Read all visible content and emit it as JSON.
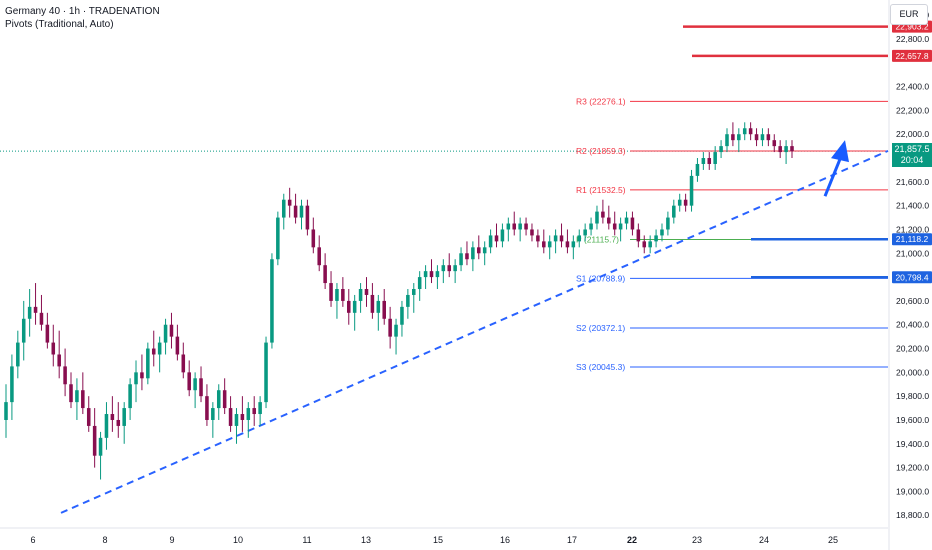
{
  "legend": {
    "title": "Germany 40 · 1h · TRADENATION",
    "indicator": "Pivots (Traditional, Auto)"
  },
  "axis": {
    "currency": "EUR"
  },
  "current_price": {
    "value": "21,857.5",
    "countdown": "20:04",
    "color": "#089981"
  },
  "colors": {
    "resistance_pivot": "#f23645",
    "pivot_point": "#4caf50",
    "support_pivot": "#2962ff",
    "trendline": "#2962ff",
    "up_candle": "#089981",
    "down_candle": "#880e4f",
    "red_level": "#e0303e",
    "blue_level": "#1e63e0",
    "arrow": "#1a5cff"
  },
  "chart_data": {
    "type": "candlestick",
    "symbol": "Germany 40",
    "timeframe": "1h",
    "x_tick_labels": [
      "6",
      "8",
      "9",
      "10",
      "11",
      "13",
      "15",
      "16",
      "17",
      "22",
      "23",
      "24",
      "25"
    ],
    "y_tick_labels": [
      "18,800.0",
      "19,000.0",
      "19,200.0",
      "19,400.0",
      "19,600.0",
      "19,800.0",
      "20,000.0",
      "20,200.0",
      "20,400.0",
      "20,600.0",
      "21,000.0",
      "21,200.0",
      "21,400.0",
      "21,600.0",
      "22,000.0",
      "22,200.0",
      "22,400.0",
      "22,800.0",
      "23,000.0"
    ],
    "y_range": [
      18760,
      23060
    ],
    "pivots": [
      {
        "label": "R3 (22276.1)",
        "value": 22276.1
      },
      {
        "label": "R2 (21859.3)",
        "value": 21859.3
      },
      {
        "label": "R1 (21532.5)",
        "value": 21532.5
      },
      {
        "label": "P (21115.7)",
        "value": 21115.7
      },
      {
        "label": "S1 (20788.9)",
        "value": 20788.9
      },
      {
        "label": "S2 (20372.1)",
        "value": 20372.1
      },
      {
        "label": "S3 (20045.3)",
        "value": 20045.3
      }
    ],
    "key_levels": [
      {
        "label": "22,903.2",
        "value": 22903.2,
        "kind": "resistance"
      },
      {
        "label": "22,657.8",
        "value": 22657.8,
        "kind": "resistance"
      },
      {
        "label": "21,118.2",
        "value": 21118.2,
        "kind": "support"
      },
      {
        "label": "20,798.4",
        "value": 20798.4,
        "kind": "support"
      }
    ],
    "trendline": {
      "from": {
        "x": "6",
        "y": 18820
      },
      "to": {
        "x": "25",
        "y": 21860
      }
    },
    "arrow": {
      "from": {
        "x": "24",
        "y": 21480
      },
      "to": {
        "x": "25",
        "y": 21950
      }
    },
    "candles": [
      [
        19600,
        19900,
        19450,
        19750
      ],
      [
        19750,
        20150,
        19600,
        20050
      ],
      [
        20050,
        20350,
        19950,
        20250
      ],
      [
        20250,
        20600,
        20100,
        20450
      ],
      [
        20450,
        20700,
        20300,
        20550
      ],
      [
        20550,
        20750,
        20400,
        20500
      ],
      [
        20500,
        20650,
        20350,
        20400
      ],
      [
        20400,
        20500,
        20200,
        20250
      ],
      [
        20250,
        20400,
        20050,
        20150
      ],
      [
        20150,
        20350,
        19950,
        20050
      ],
      [
        20050,
        20200,
        19800,
        19900
      ],
      [
        19900,
        20000,
        19700,
        19750
      ],
      [
        19750,
        19950,
        19600,
        19850
      ],
      [
        19850,
        20000,
        19650,
        19700
      ],
      [
        19700,
        19800,
        19500,
        19550
      ],
      [
        19550,
        19700,
        19200,
        19300
      ],
      [
        19300,
        19500,
        19100,
        19450
      ],
      [
        19450,
        19750,
        19350,
        19650
      ],
      [
        19650,
        19800,
        19500,
        19600
      ],
      [
        19600,
        19750,
        19450,
        19550
      ],
      [
        19550,
        19750,
        19400,
        19700
      ],
      [
        19700,
        19950,
        19600,
        19900
      ],
      [
        19900,
        20100,
        19750,
        20000
      ],
      [
        20000,
        20150,
        19850,
        19950
      ],
      [
        19950,
        20250,
        19900,
        20200
      ],
      [
        20200,
        20350,
        20050,
        20150
      ],
      [
        20150,
        20300,
        20000,
        20250
      ],
      [
        20250,
        20450,
        20150,
        20400
      ],
      [
        20400,
        20500,
        20200,
        20300
      ],
      [
        20300,
        20400,
        20100,
        20150
      ],
      [
        20150,
        20250,
        19950,
        20000
      ],
      [
        20000,
        20100,
        19800,
        19850
      ],
      [
        19850,
        20000,
        19700,
        19950
      ],
      [
        19950,
        20050,
        19750,
        19800
      ],
      [
        19800,
        19900,
        19550,
        19600
      ],
      [
        19600,
        19750,
        19450,
        19700
      ],
      [
        19700,
        19900,
        19600,
        19850
      ],
      [
        19850,
        19950,
        19650,
        19700
      ],
      [
        19700,
        19800,
        19500,
        19550
      ],
      [
        19550,
        19700,
        19400,
        19650
      ],
      [
        19650,
        19800,
        19500,
        19600
      ],
      [
        19600,
        19750,
        19450,
        19700
      ],
      [
        19700,
        19800,
        19550,
        19650
      ],
      [
        19650,
        19800,
        19550,
        19750
      ],
      [
        19750,
        20300,
        19700,
        20250
      ],
      [
        20250,
        21000,
        20200,
        20950
      ],
      [
        20950,
        21350,
        20900,
        21300
      ],
      [
        21300,
        21500,
        21200,
        21450
      ],
      [
        21450,
        21550,
        21300,
        21400
      ],
      [
        21400,
        21500,
        21250,
        21300
      ],
      [
        21300,
        21450,
        21200,
        21400
      ],
      [
        21400,
        21450,
        21150,
        21200
      ],
      [
        21200,
        21300,
        21000,
        21050
      ],
      [
        21050,
        21150,
        20850,
        20900
      ],
      [
        20900,
        21000,
        20700,
        20750
      ],
      [
        20750,
        20850,
        20550,
        20600
      ],
      [
        20600,
        20750,
        20450,
        20700
      ],
      [
        20700,
        20800,
        20550,
        20600
      ],
      [
        20600,
        20700,
        20400,
        20500
      ],
      [
        20500,
        20650,
        20350,
        20600
      ],
      [
        20600,
        20750,
        20500,
        20700
      ],
      [
        20700,
        20800,
        20550,
        20650
      ],
      [
        20650,
        20750,
        20450,
        20500
      ],
      [
        20500,
        20650,
        20350,
        20600
      ],
      [
        20600,
        20700,
        20400,
        20450
      ],
      [
        20450,
        20550,
        20200,
        20300
      ],
      [
        20300,
        20450,
        20150,
        20400
      ],
      [
        20400,
        20600,
        20300,
        20550
      ],
      [
        20550,
        20700,
        20450,
        20650
      ],
      [
        20650,
        20750,
        20500,
        20700
      ],
      [
        20700,
        20850,
        20600,
        20800
      ],
      [
        20800,
        20900,
        20700,
        20850
      ],
      [
        20850,
        20950,
        20750,
        20800
      ],
      [
        20800,
        20900,
        20700,
        20850
      ],
      [
        20850,
        20950,
        20750,
        20900
      ],
      [
        20900,
        21000,
        20800,
        20850
      ],
      [
        20850,
        20950,
        20750,
        20900
      ],
      [
        20900,
        21050,
        20850,
        21000
      ],
      [
        21000,
        21100,
        20900,
        20950
      ],
      [
        20950,
        21100,
        20850,
        21050
      ],
      [
        21050,
        21150,
        20950,
        21000
      ],
      [
        21000,
        21100,
        20900,
        21050
      ],
      [
        21050,
        21200,
        21000,
        21150
      ],
      [
        21150,
        21250,
        21050,
        21100
      ],
      [
        21100,
        21250,
        21050,
        21200
      ],
      [
        21200,
        21300,
        21100,
        21250
      ],
      [
        21250,
        21350,
        21150,
        21200
      ],
      [
        21200,
        21300,
        21100,
        21250
      ],
      [
        21250,
        21300,
        21150,
        21200
      ],
      [
        21200,
        21250,
        21100,
        21150
      ],
      [
        21150,
        21200,
        21050,
        21100
      ],
      [
        21100,
        21200,
        21000,
        21050
      ],
      [
        21050,
        21150,
        20950,
        21100
      ],
      [
        21100,
        21200,
        21000,
        21150
      ],
      [
        21150,
        21250,
        21050,
        21100
      ],
      [
        21100,
        21200,
        21000,
        21050
      ],
      [
        21050,
        21150,
        20950,
        21100
      ],
      [
        21100,
        21200,
        21050,
        21150
      ],
      [
        21150,
        21250,
        21100,
        21200
      ],
      [
        21200,
        21300,
        21150,
        21250
      ],
      [
        21250,
        21400,
        21200,
        21350
      ],
      [
        21350,
        21450,
        21250,
        21300
      ],
      [
        21300,
        21400,
        21200,
        21250
      ],
      [
        21250,
        21350,
        21150,
        21200
      ],
      [
        21200,
        21300,
        21100,
        21250
      ],
      [
        21250,
        21350,
        21200,
        21300
      ],
      [
        21300,
        21350,
        21150,
        21200
      ],
      [
        21200,
        21250,
        21050,
        21100
      ],
      [
        21100,
        21150,
        21000,
        21050
      ],
      [
        21050,
        21150,
        21000,
        21100
      ],
      [
        21100,
        21200,
        21050,
        21150
      ],
      [
        21150,
        21250,
        21100,
        21200
      ],
      [
        21200,
        21350,
        21150,
        21300
      ],
      [
        21300,
        21450,
        21250,
        21400
      ],
      [
        21400,
        21500,
        21350,
        21450
      ],
      [
        21450,
        21500,
        21350,
        21400
      ],
      [
        21400,
        21700,
        21350,
        21650
      ],
      [
        21650,
        21800,
        21600,
        21750
      ],
      [
        21750,
        21850,
        21700,
        21800
      ],
      [
        21800,
        21850,
        21700,
        21750
      ],
      [
        21750,
        21900,
        21700,
        21850
      ],
      [
        21850,
        21950,
        21800,
        21900
      ],
      [
        21900,
        22050,
        21850,
        22000
      ],
      [
        22000,
        22100,
        21900,
        21950
      ],
      [
        21950,
        22050,
        21850,
        22000
      ],
      [
        22000,
        22100,
        21950,
        22050
      ],
      [
        22050,
        22100,
        21950,
        22000
      ],
      [
        22000,
        22050,
        21900,
        21950
      ],
      [
        21950,
        22050,
        21900,
        22000
      ],
      [
        22000,
        22050,
        21900,
        21950
      ],
      [
        21950,
        22000,
        21850,
        21900
      ],
      [
        21900,
        21950,
        21800,
        21850
      ],
      [
        21850,
        21950,
        21750,
        21900
      ],
      [
        21900,
        21950,
        21800,
        21857.5
      ]
    ]
  }
}
